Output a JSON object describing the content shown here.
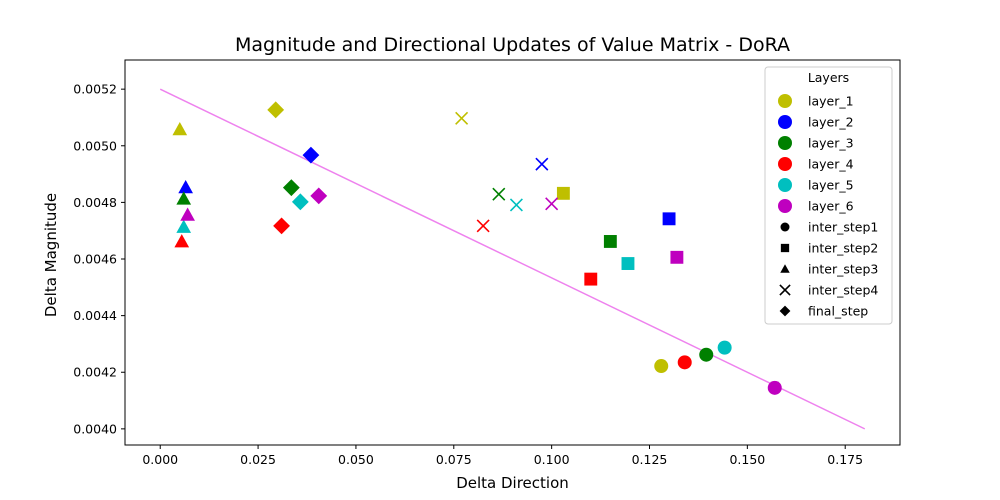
{
  "chart_data": {
    "type": "scatter",
    "title": "Magnitude and Directional Updates of Value Matrix - DoRA",
    "xlabel": "Delta Direction",
    "ylabel": "Delta Magnitude",
    "xlim": [
      -0.009,
      0.189
    ],
    "ylim": [
      0.003943,
      0.005303
    ],
    "xticks": [
      "0.000",
      "0.025",
      "0.050",
      "0.075",
      "0.100",
      "0.125",
      "0.150",
      "0.175"
    ],
    "xtick_values": [
      0.0,
      0.025,
      0.05,
      0.075,
      0.1,
      0.125,
      0.15,
      0.175
    ],
    "yticks": [
      "0.0040",
      "0.0042",
      "0.0044",
      "0.0046",
      "0.0048",
      "0.0050",
      "0.0052"
    ],
    "ytick_values": [
      0.004,
      0.0042,
      0.0044,
      0.0046,
      0.0048,
      0.005,
      0.0052
    ],
    "grid": false,
    "legend_position": "top-right",
    "legend_title": "Layers",
    "layers": [
      {
        "name": "layer_1",
        "color": "#bfbf00"
      },
      {
        "name": "layer_2",
        "color": "#0000ff"
      },
      {
        "name": "layer_3",
        "color": "#008000"
      },
      {
        "name": "layer_4",
        "color": "#ff0000"
      },
      {
        "name": "layer_5",
        "color": "#00bfbf"
      },
      {
        "name": "layer_6",
        "color": "#bf00bf"
      }
    ],
    "steps": [
      {
        "name": "inter_step1",
        "marker": "circle"
      },
      {
        "name": "inter_step2",
        "marker": "square"
      },
      {
        "name": "inter_step3",
        "marker": "triangle"
      },
      {
        "name": "inter_step4",
        "marker": "x"
      },
      {
        "name": "final_step",
        "marker": "diamond"
      }
    ],
    "points": [
      {
        "layer": "layer_1",
        "step": "inter_step1",
        "x": 0.128,
        "y": 0.004222
      },
      {
        "layer": "layer_4",
        "step": "inter_step1",
        "x": 0.134,
        "y": 0.004235
      },
      {
        "layer": "layer_3",
        "step": "inter_step1",
        "x": 0.1395,
        "y": 0.004262
      },
      {
        "layer": "layer_5",
        "step": "inter_step1",
        "x": 0.1442,
        "y": 0.004287
      },
      {
        "layer": "layer_6",
        "step": "inter_step1",
        "x": 0.157,
        "y": 0.004145
      },
      {
        "layer": "layer_1",
        "step": "inter_step2",
        "x": 0.103,
        "y": 0.004832
      },
      {
        "layer": "layer_2",
        "step": "inter_step2",
        "x": 0.13,
        "y": 0.004742
      },
      {
        "layer": "layer_3",
        "step": "inter_step2",
        "x": 0.115,
        "y": 0.004662
      },
      {
        "layer": "layer_4",
        "step": "inter_step2",
        "x": 0.11,
        "y": 0.004529
      },
      {
        "layer": "layer_5",
        "step": "inter_step2",
        "x": 0.1195,
        "y": 0.004584
      },
      {
        "layer": "layer_6",
        "step": "inter_step2",
        "x": 0.132,
        "y": 0.004606
      },
      {
        "layer": "layer_1",
        "step": "inter_step3",
        "x": 0.005,
        "y": 0.005058
      },
      {
        "layer": "layer_2",
        "step": "inter_step3",
        "x": 0.0065,
        "y": 0.004853
      },
      {
        "layer": "layer_3",
        "step": "inter_step3",
        "x": 0.006,
        "y": 0.004813
      },
      {
        "layer": "layer_4",
        "step": "inter_step3",
        "x": 0.0055,
        "y": 0.004662
      },
      {
        "layer": "layer_5",
        "step": "inter_step3",
        "x": 0.006,
        "y": 0.004713
      },
      {
        "layer": "layer_6",
        "step": "inter_step3",
        "x": 0.007,
        "y": 0.004756
      },
      {
        "layer": "layer_1",
        "step": "inter_step4",
        "x": 0.077,
        "y": 0.005097
      },
      {
        "layer": "layer_2",
        "step": "inter_step4",
        "x": 0.0975,
        "y": 0.004935
      },
      {
        "layer": "layer_3",
        "step": "inter_step4",
        "x": 0.0865,
        "y": 0.004829
      },
      {
        "layer": "layer_4",
        "step": "inter_step4",
        "x": 0.0825,
        "y": 0.004717
      },
      {
        "layer": "layer_5",
        "step": "inter_step4",
        "x": 0.091,
        "y": 0.004791
      },
      {
        "layer": "layer_6",
        "step": "inter_step4",
        "x": 0.1,
        "y": 0.004795
      },
      {
        "layer": "layer_1",
        "step": "final_step",
        "x": 0.0295,
        "y": 0.005127
      },
      {
        "layer": "layer_2",
        "step": "final_step",
        "x": 0.0385,
        "y": 0.004967
      },
      {
        "layer": "layer_3",
        "step": "final_step",
        "x": 0.0335,
        "y": 0.004852
      },
      {
        "layer": "layer_4",
        "step": "final_step",
        "x": 0.031,
        "y": 0.004717
      },
      {
        "layer": "layer_5",
        "step": "final_step",
        "x": 0.0358,
        "y": 0.004802
      },
      {
        "layer": "layer_6",
        "step": "final_step",
        "x": 0.0405,
        "y": 0.004823
      }
    ],
    "trend_line": {
      "color": "#ee82ee",
      "x": [
        0.0,
        0.18
      ],
      "y": [
        0.0052,
        0.004
      ]
    }
  }
}
